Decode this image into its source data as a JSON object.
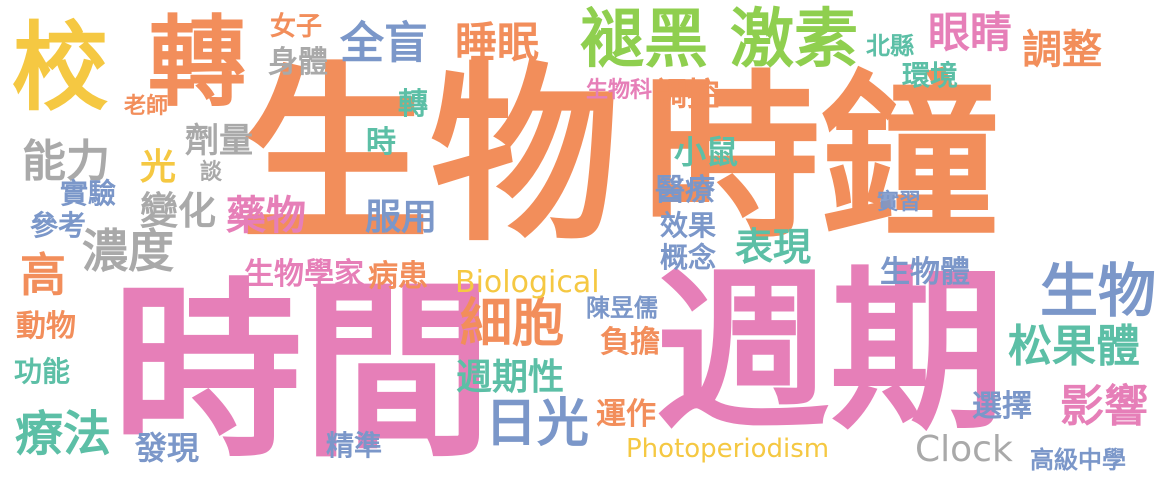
{
  "palette": {
    "orange": "#f28e5b",
    "pink": "#e67fb8",
    "yellow": "#f5c842",
    "green": "#8fcf4f",
    "blue": "#7b97c9",
    "gray": "#a9a9a9",
    "teal": "#5cbfa6",
    "rose": "#f08ca0",
    "tan": "#d8b46a"
  },
  "words": [
    {
      "text": "生物",
      "color": "orange"
    },
    {
      "text": "時鐘",
      "color": "orange"
    },
    {
      "text": "時間",
      "color": "pink"
    },
    {
      "text": "週期",
      "color": "pink"
    },
    {
      "text": "校",
      "color": "yellow"
    },
    {
      "text": "轉",
      "color": "orange"
    },
    {
      "text": "褪黑",
      "color": "green"
    },
    {
      "text": "激素",
      "color": "green"
    },
    {
      "text": "全盲",
      "color": "blue"
    },
    {
      "text": "睡眠",
      "color": "orange"
    },
    {
      "text": "眼睛",
      "color": "pink"
    },
    {
      "text": "調整",
      "color": "orange"
    },
    {
      "text": "北縣",
      "color": "teal"
    },
    {
      "text": "環境",
      "color": "teal"
    },
    {
      "text": "生物",
      "color": "blue"
    },
    {
      "text": "松果體",
      "color": "teal"
    },
    {
      "text": "影響",
      "color": "pink"
    },
    {
      "text": "選擇",
      "color": "blue"
    },
    {
      "text": "高級中學",
      "color": "blue"
    },
    {
      "text": "Clock",
      "color": "gray"
    },
    {
      "text": "Photoperiodism",
      "color": "yellow"
    },
    {
      "text": "日光",
      "color": "blue"
    },
    {
      "text": "細胞",
      "color": "orange"
    },
    {
      "text": "週期性",
      "color": "teal"
    },
    {
      "text": "Biological",
      "color": "yellow"
    },
    {
      "text": "表現",
      "color": "teal"
    },
    {
      "text": "生物體",
      "color": "blue"
    },
    {
      "text": "能力",
      "color": "gray"
    },
    {
      "text": "濃度",
      "color": "gray"
    },
    {
      "text": "高",
      "color": "orange"
    },
    {
      "text": "療法",
      "color": "teal"
    },
    {
      "text": "生物學家",
      "color": "pink"
    },
    {
      "text": "病患",
      "color": "orange"
    },
    {
      "text": "藥物",
      "color": "pink"
    },
    {
      "text": "服用",
      "color": "blue"
    },
    {
      "text": "運作",
      "color": "orange"
    },
    {
      "text": "發現",
      "color": "blue"
    },
    {
      "text": "精準",
      "color": "blue"
    },
    {
      "text": "光",
      "color": "yellow"
    },
    {
      "text": "變化",
      "color": "gray"
    },
    {
      "text": "劑量",
      "color": "gray"
    },
    {
      "text": "實驗",
      "color": "blue"
    },
    {
      "text": "參考",
      "color": "blue"
    },
    {
      "text": "身體",
      "color": "gray"
    },
    {
      "text": "女子",
      "color": "orange"
    },
    {
      "text": "醫療",
      "color": "blue"
    },
    {
      "text": "小鼠",
      "color": "teal"
    },
    {
      "text": "效果",
      "color": "blue"
    },
    {
      "text": "概念",
      "color": "blue"
    },
    {
      "text": "負擔",
      "color": "orange"
    },
    {
      "text": "陳昱儒",
      "color": "blue"
    },
    {
      "text": "時",
      "color": "teal"
    },
    {
      "text": "轉",
      "color": "teal"
    },
    {
      "text": "老師",
      "color": "orange"
    },
    {
      "text": "動物",
      "color": "orange"
    },
    {
      "text": "功能",
      "color": "teal"
    },
    {
      "text": "生物科",
      "color": "pink"
    },
    {
      "text": "調控",
      "color": "orange"
    },
    {
      "text": "實習",
      "color": "blue"
    },
    {
      "text": "談",
      "color": "gray"
    }
  ]
}
